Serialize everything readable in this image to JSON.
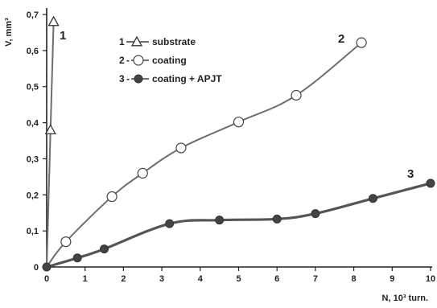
{
  "chart_data": {
    "type": "line",
    "xlabel": "N, 10³ turn.",
    "ylabel": "V, mm³",
    "xlim": [
      0,
      10
    ],
    "ylim": [
      0,
      0.7
    ],
    "x_ticks": [
      "0",
      "1",
      "2",
      "3",
      "4",
      "5",
      "6",
      "7",
      "8",
      "9",
      "10"
    ],
    "y_ticks": [
      "0",
      "0,1",
      "0,2",
      "0,3",
      "0,4",
      "0,5",
      "0,6",
      "0,7"
    ],
    "grid": false,
    "legend_position": "top-left",
    "series": [
      {
        "id": "1",
        "name": "substrate",
        "marker": "open-triangle",
        "x": [
          0,
          0.1,
          0.18
        ],
        "y": [
          0,
          0.38,
          0.68
        ]
      },
      {
        "id": "2",
        "name": "coating",
        "marker": "open-circle",
        "x": [
          0,
          0.5,
          1.7,
          2.5,
          3.5,
          5.0,
          6.5,
          8.2
        ],
        "y": [
          0,
          0.07,
          0.195,
          0.26,
          0.33,
          0.402,
          0.476,
          0.622
        ]
      },
      {
        "id": "3",
        "name": "coating + APJT",
        "marker": "filled-circle",
        "x": [
          0,
          0.8,
          1.5,
          3.2,
          4.5,
          6.0,
          7.0,
          8.5,
          10.0
        ],
        "y": [
          0,
          0.025,
          0.05,
          0.12,
          0.13,
          0.133,
          0.148,
          0.19,
          0.232
        ]
      }
    ],
    "legend": [
      {
        "num": "1",
        "sep": "",
        "label": "substrate",
        "marker": "open-triangle"
      },
      {
        "num": "2",
        "sep": "-",
        "label": "coating",
        "marker": "open-circle"
      },
      {
        "num": "3",
        "sep": "-",
        "label": "coating + APJT",
        "marker": "filled-circle"
      }
    ],
    "series_tags": [
      "1",
      "2",
      "3"
    ]
  },
  "colors": {
    "line": "#6e6e6e",
    "series3_line": "#555555",
    "marker_fill_closed": "#444444",
    "marker_fill_open": "#ffffff",
    "axis": "#222222"
  }
}
